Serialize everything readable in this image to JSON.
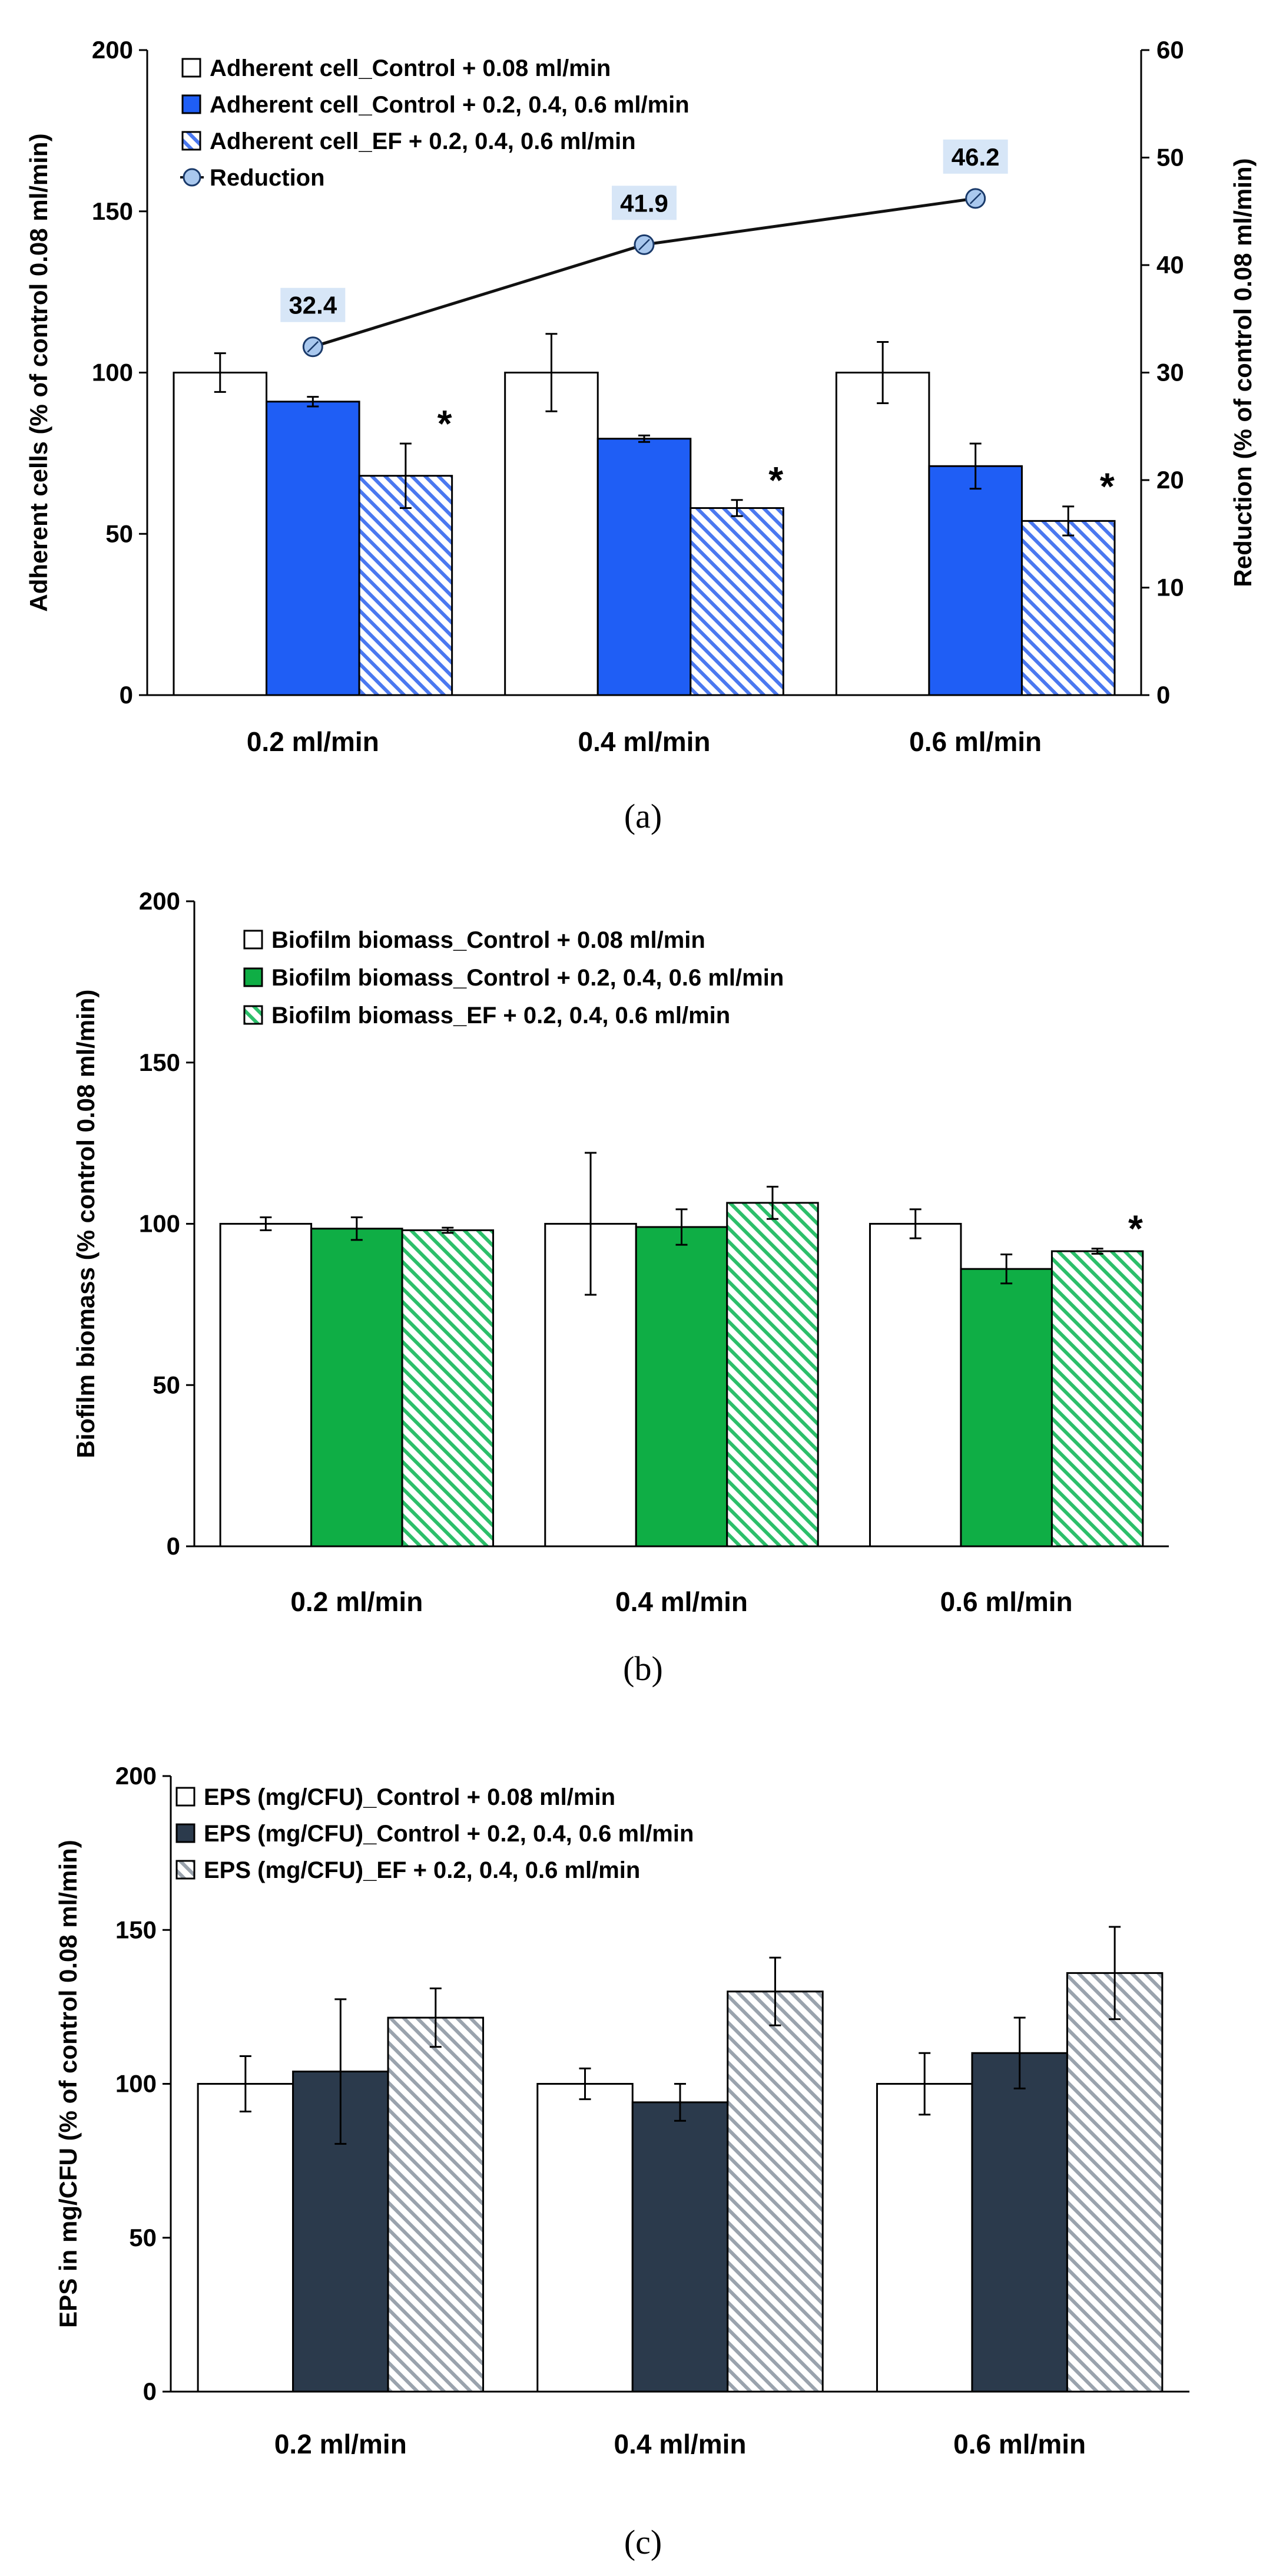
{
  "figure": {
    "panels": [
      {
        "label": "(a)"
      },
      {
        "label": "(b)"
      },
      {
        "label": "(c)"
      }
    ]
  },
  "chart_data": [
    {
      "type": "bar",
      "panel": "a",
      "categories": [
        "0.2 ml/min",
        "0.4 ml/min",
        "0.6 ml/min"
      ],
      "ylabel": "Adherent cells (% of control 0.08 ml/min)",
      "ylabel_right": "Reduction (% of control 0.08 ml/min)",
      "ylim": [
        0,
        200
      ],
      "yticks": [
        0,
        50,
        100,
        150,
        200
      ],
      "ylim_right": [
        0,
        60
      ],
      "yticks_right": [
        0,
        10,
        20,
        30,
        40,
        50,
        60
      ],
      "legend_position": "top-left",
      "colors": {
        "control": "#ffffff",
        "solid": "#1f5ef5",
        "hatch": "#4a78f0",
        "line": "#111111",
        "marker": "#a9c8ee",
        "label_bg": "#d7e6f7"
      },
      "series": [
        {
          "name": "Adherent cell_Control + 0.08 ml/min",
          "style": "white",
          "values": [
            100,
            100,
            100
          ],
          "errors": [
            6,
            12,
            9.5
          ],
          "sig": [
            false,
            false,
            false
          ]
        },
        {
          "name": "Adherent cell_Control + 0.2, 0.4, 0.6 ml/min",
          "style": "solid",
          "values": [
            91,
            79.5,
            71
          ],
          "errors": [
            1.5,
            1,
            7
          ],
          "sig": [
            false,
            false,
            false
          ]
        },
        {
          "name": "Adherent cell_EF + 0.2, 0.4, 0.6 ml/min",
          "style": "hatch",
          "values": [
            68,
            58,
            54
          ],
          "errors": [
            10,
            2.5,
            4.5
          ],
          "sig": [
            true,
            true,
            true
          ]
        }
      ],
      "line_series": {
        "name": "Reduction",
        "values": [
          32.4,
          41.9,
          46.2
        ],
        "labels": [
          "32.4",
          "41.9",
          "46.2"
        ]
      },
      "sig_marker": "*"
    },
    {
      "type": "bar",
      "panel": "b",
      "categories": [
        "0.2 ml/min",
        "0.4 ml/min",
        "0.6 ml/min"
      ],
      "ylabel": "Biofilm biomass (% control 0.08 ml/min)",
      "ylim": [
        0,
        200
      ],
      "yticks": [
        0,
        50,
        100,
        150,
        200
      ],
      "legend_position": "top-left",
      "colors": {
        "control": "#ffffff",
        "solid": "#0fae45",
        "hatch": "#2cbf6a"
      },
      "series": [
        {
          "name": "Biofilm biomass_Control + 0.08 ml/min",
          "style": "white",
          "values": [
            100,
            100,
            100
          ],
          "errors": [
            2,
            22,
            4.5
          ],
          "sig": [
            false,
            false,
            false
          ]
        },
        {
          "name": "Biofilm biomass_Control + 0.2, 0.4, 0.6 ml/min",
          "style": "solid",
          "values": [
            98.5,
            99,
            86
          ],
          "errors": [
            3.5,
            5.5,
            4.5
          ],
          "sig": [
            false,
            false,
            false
          ]
        },
        {
          "name": "Biofilm biomass_EF + 0.2, 0.4, 0.6 ml/min",
          "style": "hatch",
          "values": [
            98,
            106.5,
            91.5
          ],
          "errors": [
            0.8,
            5,
            0.8
          ],
          "sig": [
            false,
            false,
            true
          ]
        }
      ],
      "sig_marker": "*"
    },
    {
      "type": "bar",
      "panel": "c",
      "categories": [
        "0.2 ml/min",
        "0.4 ml/min",
        "0.6 ml/min"
      ],
      "ylabel": "EPS in mg/CFU (% of control 0.08 ml/min)",
      "ylim": [
        0,
        200
      ],
      "yticks": [
        0,
        50,
        100,
        150,
        200
      ],
      "legend_position": "top-left",
      "colors": {
        "control": "#ffffff",
        "solid": "#2b3a4c",
        "hatch": "#9aa3ad"
      },
      "series": [
        {
          "name": "EPS (mg/CFU)_Control + 0.08 ml/min",
          "style": "white",
          "values": [
            100,
            100,
            100
          ],
          "errors": [
            9,
            5,
            10
          ],
          "sig": [
            false,
            false,
            false
          ]
        },
        {
          "name": "EPS (mg/CFU)_Control + 0.2, 0.4, 0.6 ml/min",
          "style": "solid",
          "values": [
            104,
            94,
            110
          ],
          "errors": [
            23.5,
            6,
            11.5
          ],
          "sig": [
            false,
            false,
            false
          ]
        },
        {
          "name": "EPS (mg/CFU)_EF + 0.2, 0.4, 0.6 ml/min",
          "style": "hatch",
          "values": [
            121.5,
            130,
            136
          ],
          "errors": [
            9.5,
            11,
            15
          ],
          "sig": [
            false,
            false,
            false
          ]
        }
      ],
      "sig_marker": ""
    }
  ]
}
